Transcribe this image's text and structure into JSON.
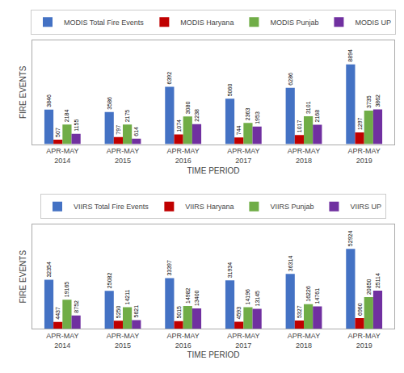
{
  "chart_data": [
    {
      "type": "bar",
      "categories": [
        "APR-MAY\n2014",
        "APR-MAY\n2015",
        "APR-MAY\n2016",
        "APR-MAY\n2017",
        "APR-MAY\n2018",
        "APR-MAY\n2019"
      ],
      "series": [
        {
          "name": "MODIS Total Fire Events",
          "color": "#4472C4",
          "values": [
            3846,
            3586,
            6392,
            5060,
            6286,
            8894
          ]
        },
        {
          "name": "MODIS Haryana",
          "color": "#C00000",
          "values": [
            507,
            797,
            1074,
            744,
            1017,
            1297
          ]
        },
        {
          "name": "MODIS Punjab",
          "color": "#70AD47",
          "values": [
            2184,
            2175,
            3080,
            2363,
            3101,
            3735
          ]
        },
        {
          "name": "MODIS UP",
          "color": "#7030A0",
          "values": [
            1155,
            614,
            2238,
            1953,
            2168,
            3862
          ]
        }
      ],
      "xlabel": "TIME PERIOD",
      "ylabel": "FIRE EVENTS",
      "ylim": [
        0,
        11562.2
      ],
      "data_labels": true,
      "tick_labels": "x",
      "grid": false,
      "legend": "top"
    },
    {
      "type": "bar",
      "categories": [
        "APR-MAY\n2014",
        "APR-MAY\n2015",
        "APR-MAY\n2016",
        "APR-MAY\n2017",
        "APR-MAY\n2018",
        "APR-MAY\n2019"
      ],
      "series": [
        {
          "name": "VIIRS Total Fire Events",
          "color": "#4472C4",
          "values": [
            32354,
            25082,
            33397,
            31934,
            36314,
            52924
          ]
        },
        {
          "name": "VIIRS Haryana",
          "color": "#C00000",
          "values": [
            4437,
            5250,
            5015,
            4593,
            5327,
            6960
          ]
        },
        {
          "name": "VIIRS Punjab",
          "color": "#70AD47",
          "values": [
            19165,
            14211,
            14982,
            14196,
            16226,
            20850
          ]
        },
        {
          "name": "VIIRS UP",
          "color": "#7030A0",
          "values": [
            8752,
            5621,
            13400,
            13145,
            14761,
            25114
          ]
        }
      ],
      "xlabel": "TIME PERIOD",
      "ylabel": "FIRE EVENTS",
      "ylim": [
        0,
        68801.2
      ],
      "data_labels": true,
      "tick_labels": "x",
      "grid": false,
      "legend": "top"
    }
  ]
}
